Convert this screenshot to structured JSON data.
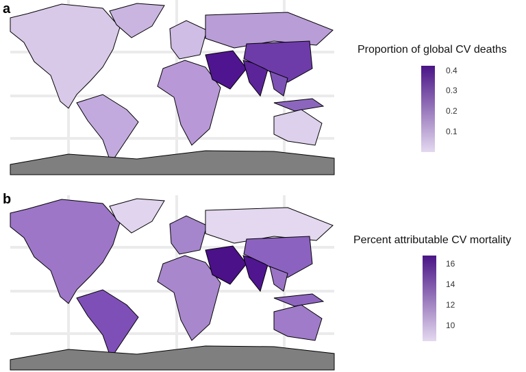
{
  "panels": [
    {
      "label": "a",
      "legend": {
        "title": "Proportion of global CV deaths",
        "ticks": [
          "0.4",
          "0.3",
          "0.2",
          "0.1"
        ],
        "range": [
          0.0,
          0.42
        ],
        "color_low": "#e4d9f0",
        "color_high": "#4a1486"
      },
      "regions": {
        "north_america": "#d8c9e8",
        "greenland": "#c9b5e0",
        "south_america": "#c2aade",
        "europe": "#cfbde5",
        "russia": "#b99dd7",
        "africa": "#b898d6",
        "middle_east": "#4f1591",
        "india": "#5b2599",
        "china": "#6d3ca9",
        "se_asia": "#7d52b5",
        "indonesia": "#8c66bd",
        "australia": "#ddd0ec",
        "antarctica": "#7f7f7f"
      }
    },
    {
      "label": "b",
      "legend": {
        "title": "Percent attributable CV mortality",
        "ticks": [
          "16",
          "14",
          "12",
          "10"
        ],
        "range": [
          8.8,
          16.8
        ],
        "color_low": "#e4d9f0",
        "color_high": "#4a1486"
      },
      "regions": {
        "north_america": "#9d76c8",
        "greenland": "#e0d4ee",
        "south_america": "#7f4fb8",
        "europe": "#a585cc",
        "russia": "#e3d8ef",
        "africa": "#a887cd",
        "middle_east": "#4a1189",
        "india": "#4f1690",
        "china": "#8c62c0",
        "se_asia": "#9a73c6",
        "indonesia": "#8e66bf",
        "australia": "#9f7bc9",
        "antarctica": "#7f7f7f"
      }
    }
  ]
}
